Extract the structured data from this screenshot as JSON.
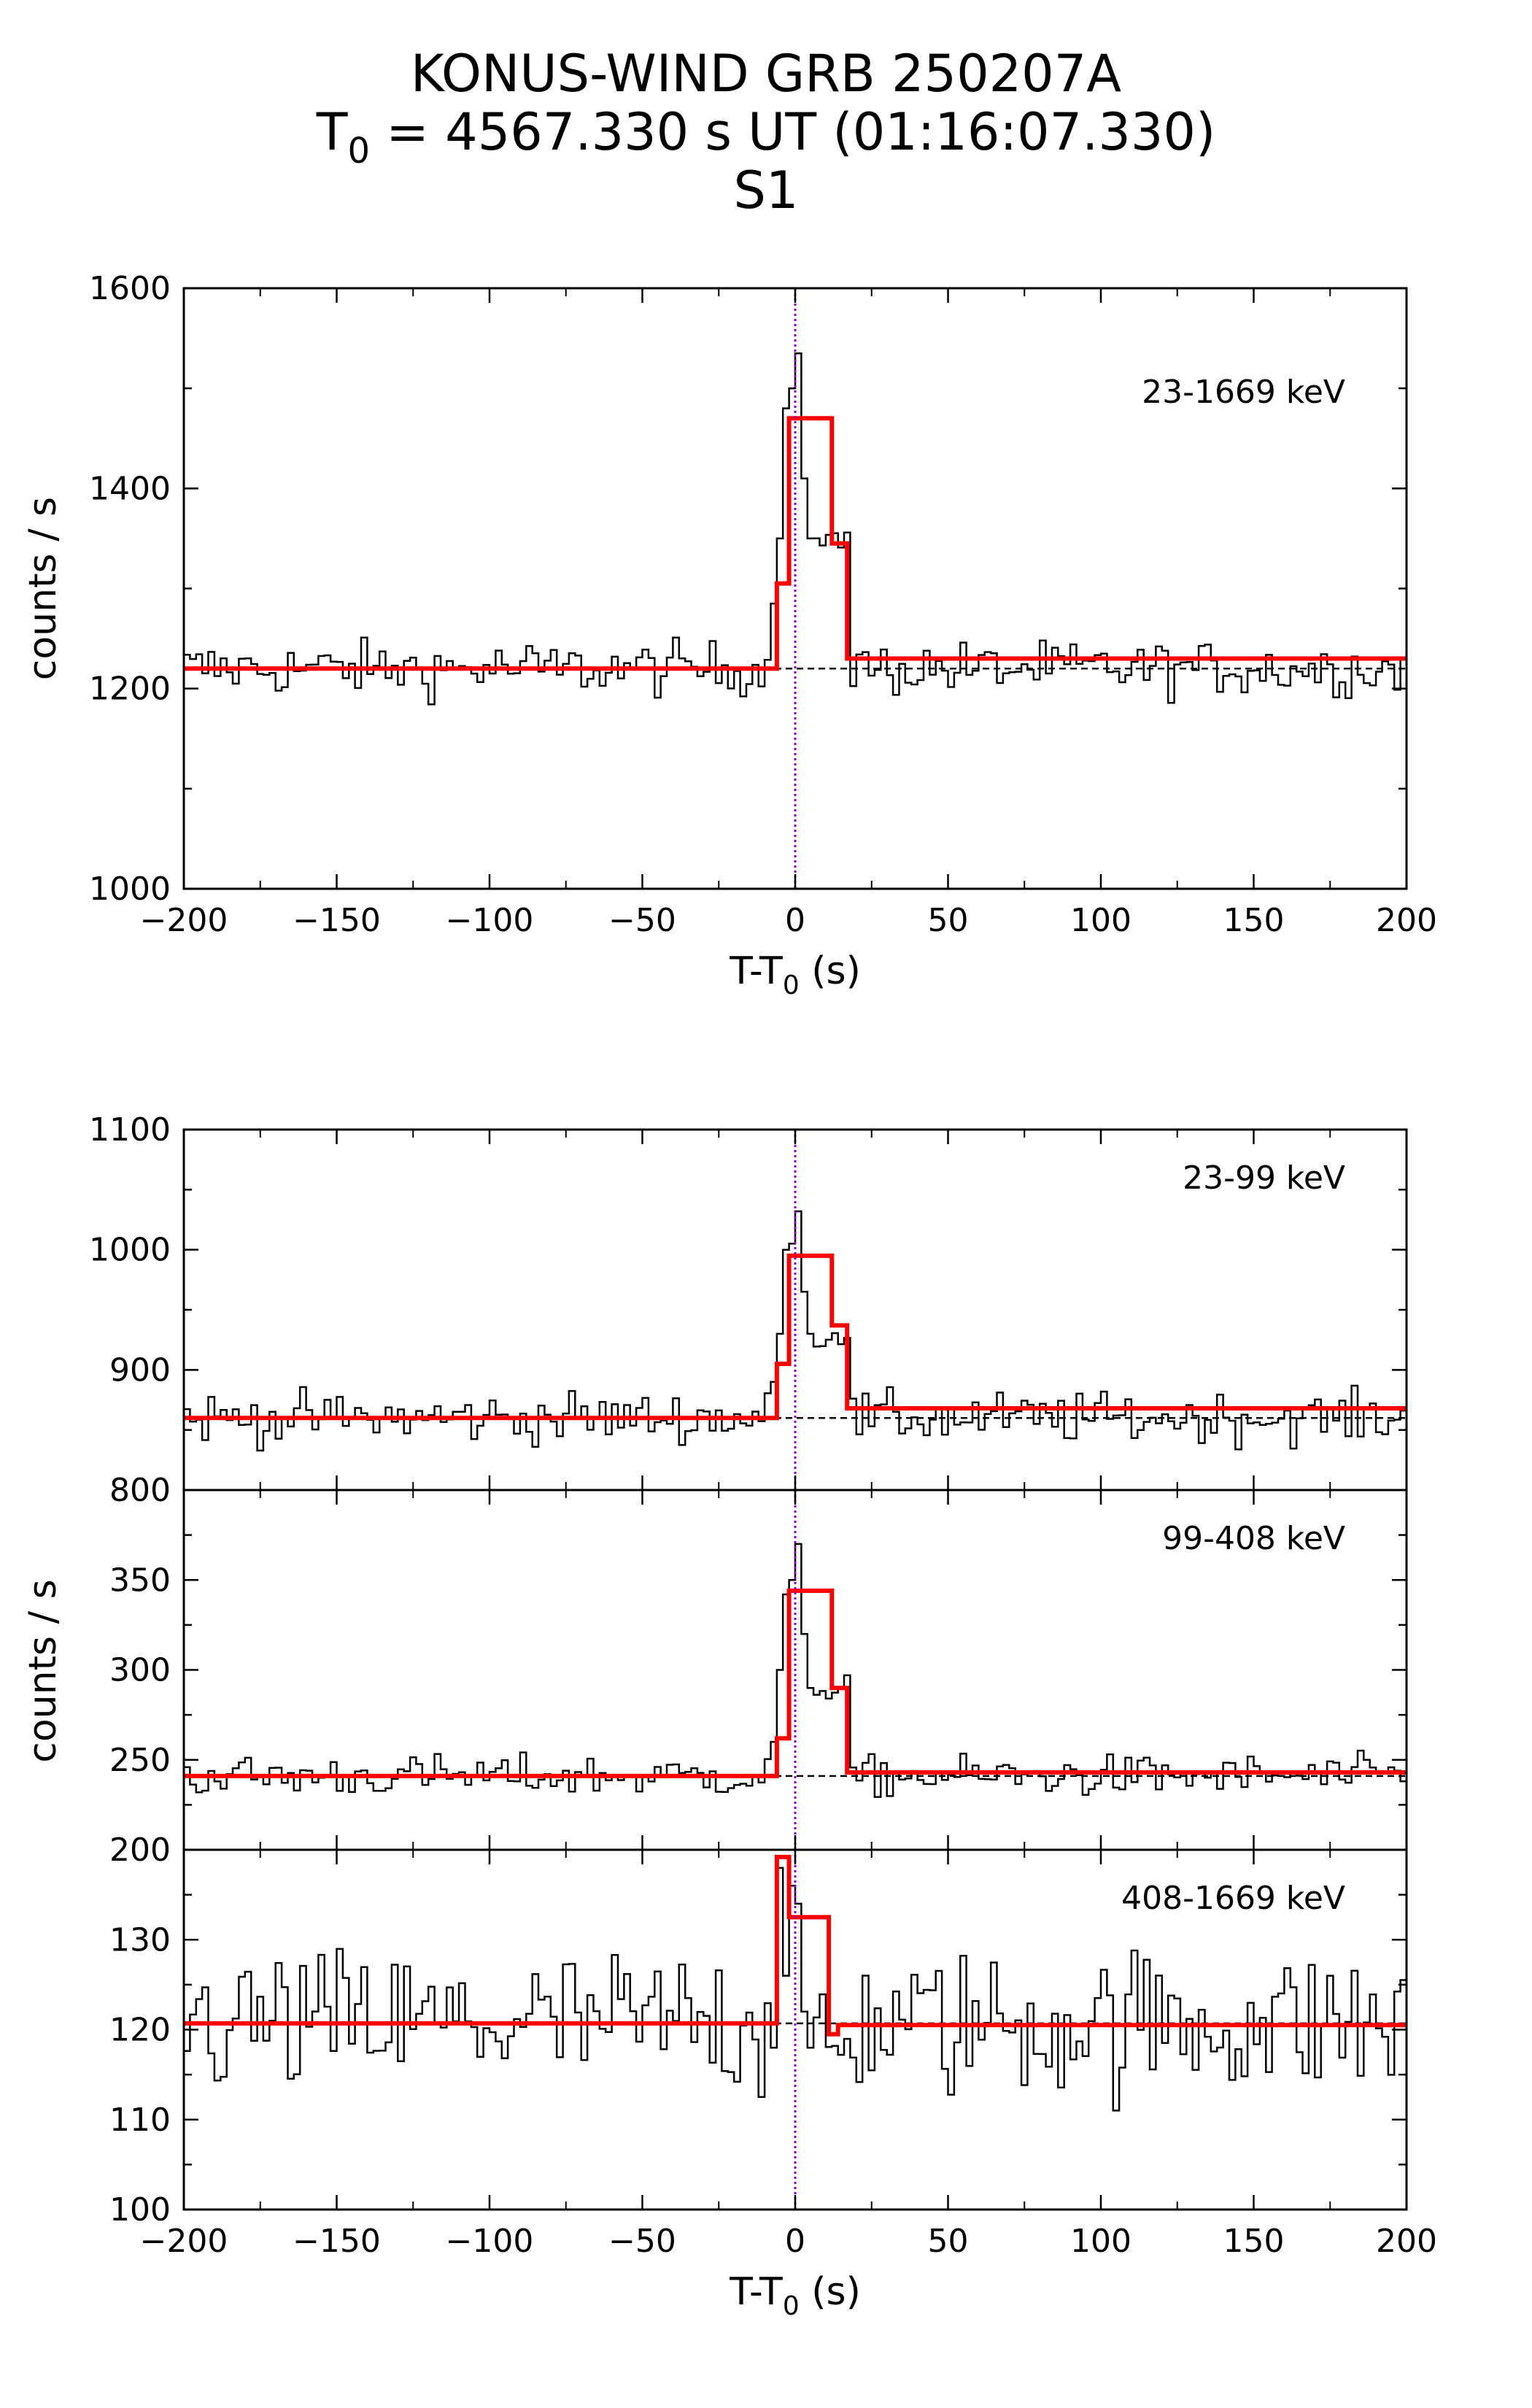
{
  "title": {
    "line1": "KONUS-WIND GRB 250207A",
    "line2_pre": "T",
    "line2_sub": "0",
    "line2_post": " = 4567.330 s UT (01:16:07.330)",
    "line3": "S1"
  },
  "chart_data": [
    {
      "type": "line",
      "panel": "top",
      "band_label": "23-1669 keV",
      "ylabel": "counts / s",
      "xlabel_pre": "T-T",
      "xlabel_sub": "0",
      "xlabel_post": " (s)",
      "xlim": [
        -200,
        200
      ],
      "ylim": [
        1000,
        1600
      ],
      "xticks": [
        -200,
        -150,
        -100,
        -50,
        0,
        50,
        100,
        150,
        200
      ],
      "xtick_labels": [
        "−200",
        "−150",
        "−100",
        "−50",
        "0",
        "50",
        "100",
        "150",
        "200"
      ],
      "yticks": [
        1000,
        1200,
        1400,
        1600
      ],
      "ytick_labels": [
        "1000",
        "1200",
        "1400",
        "1600"
      ],
      "background_level": 1220,
      "model_steps": [
        [
          -200,
          1220
        ],
        [
          -6,
          1220
        ],
        [
          -6,
          1305
        ],
        [
          -2,
          1305
        ],
        [
          -2,
          1470
        ],
        [
          12,
          1470
        ],
        [
          12,
          1345
        ],
        [
          17,
          1345
        ],
        [
          17,
          1230
        ],
        [
          200,
          1230
        ]
      ],
      "data_base": 1220,
      "data_amp": 26,
      "data_peak": [
        1285,
        1350,
        1480,
        1500,
        1535,
        1410,
        1350
      ]
    },
    {
      "type": "line",
      "panel": "middle-1",
      "band_label": "23-99 keV",
      "xlim": [
        -200,
        200
      ],
      "ylim": [
        800,
        1100
      ],
      "yticks": [
        800,
        900,
        1000,
        1100
      ],
      "ytick_labels": [
        "800",
        "900",
        "1000",
        "1100"
      ],
      "background_level": 860,
      "model_steps": [
        [
          -200,
          860
        ],
        [
          -6,
          860
        ],
        [
          -6,
          905
        ],
        [
          -2,
          905
        ],
        [
          -2,
          995
        ],
        [
          12,
          995
        ],
        [
          12,
          937
        ],
        [
          17,
          937
        ],
        [
          17,
          868
        ],
        [
          200,
          868
        ]
      ],
      "data_base": 860,
      "data_amp": 20,
      "data_peak": [
        890,
        930,
        1000,
        1005,
        1032,
        965,
        930
      ]
    },
    {
      "type": "line",
      "panel": "middle-2",
      "band_label": "99-408 keV",
      "ylabel": "counts / s",
      "xlim": [
        -200,
        200
      ],
      "ylim": [
        200,
        400
      ],
      "yticks": [
        200,
        250,
        300,
        350
      ],
      "ytick_labels": [
        "200",
        "250",
        "300",
        "350"
      ],
      "background_level": 241,
      "model_steps": [
        [
          -200,
          241
        ],
        [
          -6,
          241
        ],
        [
          -6,
          262
        ],
        [
          -2,
          262
        ],
        [
          -2,
          344
        ],
        [
          12,
          344
        ],
        [
          12,
          290
        ],
        [
          17,
          290
        ],
        [
          17,
          243
        ],
        [
          200,
          243
        ]
      ],
      "data_base": 241,
      "data_amp": 11,
      "data_peak": [
        260,
        300,
        342,
        350,
        370,
        320,
        290
      ]
    },
    {
      "type": "line",
      "panel": "bottom",
      "band_label": "408-1669 keV",
      "xlabel_pre": "T-T",
      "xlabel_sub": "0",
      "xlabel_post": " (s)",
      "xlim": [
        -200,
        200
      ],
      "ylim": [
        100,
        140
      ],
      "xticks": [
        -200,
        -150,
        -100,
        -50,
        0,
        50,
        100,
        150,
        200
      ],
      "xtick_labels": [
        "−200",
        "−150",
        "−100",
        "−50",
        "0",
        "50",
        "100",
        "150",
        "200"
      ],
      "yticks": [
        100,
        110,
        120,
        130
      ],
      "ytick_labels": [
        "100",
        "110",
        "120",
        "130"
      ],
      "background_level": 120.7,
      "model_steps": [
        [
          -200,
          120.7
        ],
        [
          -6,
          120.7
        ],
        [
          -6,
          139.2
        ],
        [
          -2,
          139.2
        ],
        [
          -2,
          132.5
        ],
        [
          11,
          132.5
        ],
        [
          11,
          119.5
        ],
        [
          14,
          119.5
        ],
        [
          14,
          120.5
        ],
        [
          200,
          120.5
        ]
      ],
      "data_base": 120.7,
      "data_amp": 8,
      "data_peak": [
        118,
        138,
        126,
        136,
        134,
        122,
        118
      ]
    }
  ]
}
